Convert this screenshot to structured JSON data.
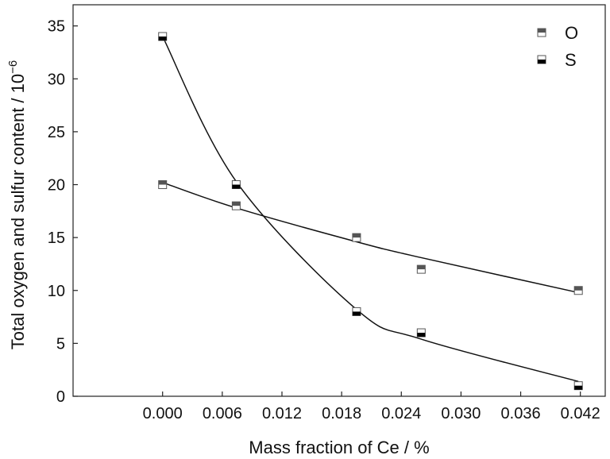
{
  "chart_data": {
    "type": "scatter",
    "title": "",
    "xlabel": "Mass fraction of Ce / %",
    "ylabel_main": "Total oxygen and sulfur content / 10",
    "ylabel_exp": "−6",
    "xlim": [
      -0.009,
      0.0445
    ],
    "ylim": [
      0,
      37
    ],
    "xticks": [
      "0.000",
      "0.006",
      "0.012",
      "0.018",
      "0.024",
      "0.030",
      "0.036",
      "0.042"
    ],
    "xtick_values": [
      0.0,
      0.006,
      0.012,
      0.018,
      0.024,
      0.03,
      0.036,
      0.042
    ],
    "yticks": [
      "0",
      "5",
      "10",
      "15",
      "20",
      "25",
      "30",
      "35"
    ],
    "ytick_values": [
      0,
      5,
      10,
      15,
      20,
      25,
      30,
      35
    ],
    "grid": false,
    "legend_position": "top-right",
    "series": [
      {
        "name": "O",
        "marker": "square-top-filled",
        "color": "#555555",
        "x": [
          0.0,
          0.0074,
          0.0195,
          0.026,
          0.0418
        ],
        "y": [
          20,
          18,
          15,
          12,
          10
        ],
        "fit_y": [
          20.2,
          17.8,
          14.6,
          13.1,
          9.8
        ]
      },
      {
        "name": "S",
        "marker": "square-bottom-filled",
        "color": "#000000",
        "x": [
          0.0,
          0.0074,
          0.0195,
          0.026,
          0.0418
        ],
        "y": [
          34,
          20,
          8,
          6,
          1
        ],
        "fit_y": [
          34.0,
          20.3,
          8.2,
          5.4,
          1.4
        ]
      }
    ]
  }
}
